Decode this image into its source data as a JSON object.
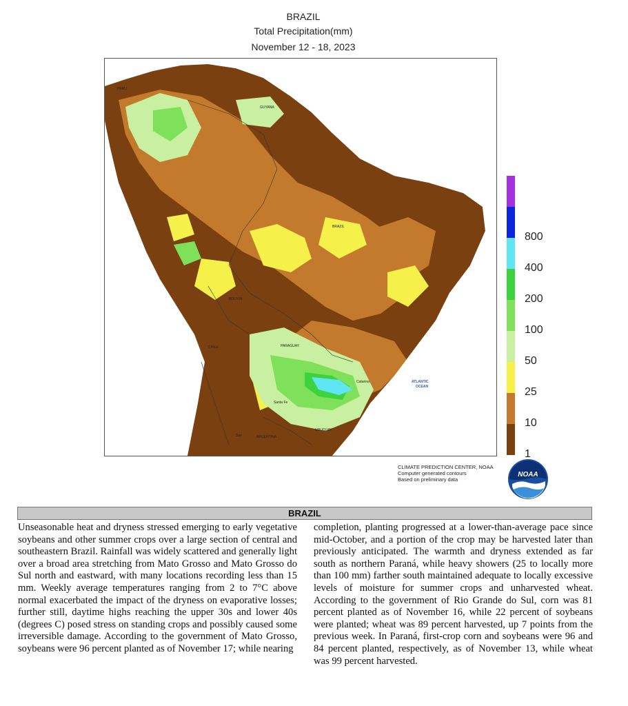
{
  "header": {
    "country": "BRAZIL",
    "metric": "Total Precipitation(mm)",
    "period": "November 12 - 18, 2023"
  },
  "map": {
    "ocean_label_line1": "ATLANTIC",
    "ocean_label_line2": "OCEAN",
    "place_labels": [
      "PERU",
      "BOLIVIA",
      "PARAGUAY",
      "CHILE",
      "ARGENTINA",
      "URUGUAY",
      "BRAZIL",
      "GUYANA",
      "Catarina",
      "Santa Fe",
      "San"
    ]
  },
  "legend": {
    "bins": [
      {
        "label": "",
        "color": "#a42fe0"
      },
      {
        "label": "800",
        "color": "#0a25e0"
      },
      {
        "label": "400",
        "color": "#5fe6f2"
      },
      {
        "label": "200",
        "color": "#3fd23f"
      },
      {
        "label": "100",
        "color": "#7fe05a"
      },
      {
        "label": "50",
        "color": "#c8f0a0"
      },
      {
        "label": "25",
        "color": "#f5f04a"
      },
      {
        "label": "10",
        "color": "#c47a2c"
      },
      {
        "label": "1",
        "color": "#7a4010"
      }
    ]
  },
  "credit": {
    "line1": "CLIMATE PREDICTION CENTER, NOAA",
    "line2": "Computer generated contours",
    "line3": "Based on preliminary data"
  },
  "logo": {
    "text": "NOAA",
    "icon": "noaa-logo"
  },
  "section": {
    "title": "BRAZIL",
    "left_text": "Unseasonable heat and dryness stressed emerging to early vegetative soybeans and other summer crops over a large section of central and southeastern Brazil.  Rainfall was widely scattered and generally light over a broad area stretching from Mato Grosso and Mato Grosso do Sul north and eastward, with many locations recording less than 15 mm.  Weekly average temperatures ranging from 2 to 7°C above normal exacerbated the impact of the dryness on evaporative losses; further still, daytime highs reaching the upper 30s and lower 40s (degrees C) posed stress on standing crops and possibly caused some irreversible damage. According to the government of Mato Grosso, soybeans were 96 percent planted as of November 17; while nearing",
    "right_text": "completion, planting progressed at a lower-than-average pace since mid-October, and a portion of the crop may be harvested later than previously anticipated.  The warmth and dryness extended as far south as northern Paraná, while heavy showers (25 to locally more than 100 mm) farther south maintained adequate to locally excessive levels of moisture for summer crops and unharvested wheat. According to the government of Rio Grande do Sul, corn was 81 percent planted as of November 16, while 22 percent of soybeans were planted; wheat was 89 percent harvested, up 7 points from the previous week.  In Paraná, first-crop corn and soybeans were 96 and 84 percent planted, respectively, as of November 13, while wheat was 99 percent harvested."
  }
}
